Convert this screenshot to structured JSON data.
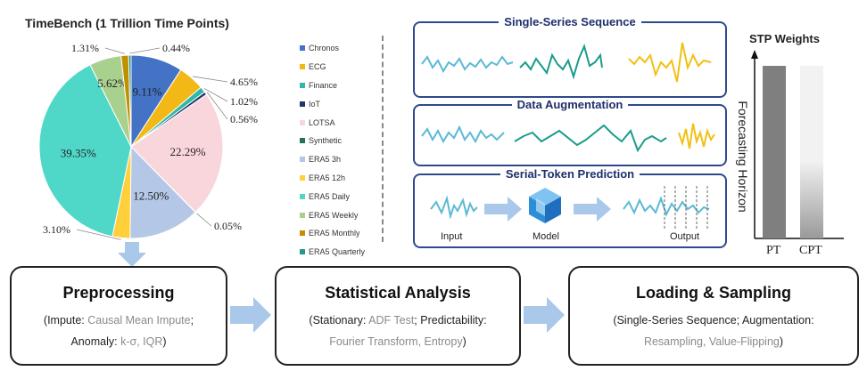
{
  "pie": {
    "title": "TimeBench (1 Trillion Time Points)",
    "slices": [
      {
        "label": "Chronos",
        "value": 9.11,
        "pct_label": "9.11%",
        "color": "#4472c4"
      },
      {
        "label": "ECG",
        "value": 4.65,
        "pct_label": "4.65%",
        "color": "#f1b816"
      },
      {
        "label": "Finance",
        "value": 1.02,
        "pct_label": "1.02%",
        "color": "#31b7a9"
      },
      {
        "label": "IoT",
        "value": 0.56,
        "pct_label": "0.56%",
        "color": "#1f3864"
      },
      {
        "label": "LOTSA",
        "value": 22.29,
        "pct_label": "22.29%",
        "color": "#f9d6dc"
      },
      {
        "label": "Synthetic",
        "value": 0.05,
        "pct_label": "0.05%",
        "color": "#2a6e62"
      },
      {
        "label": "ERA5 3h",
        "value": 12.5,
        "pct_label": "12.50%",
        "color": "#b4c7e7"
      },
      {
        "label": "ERA5 12h",
        "value": 3.1,
        "pct_label": "3.10%",
        "color": "#ffd03a"
      },
      {
        "label": "ERA5 Daily",
        "value": 39.35,
        "pct_label": "39.35%",
        "color": "#4fd8c8"
      },
      {
        "label": "ERA5 Weekly",
        "value": 5.62,
        "pct_label": "5.62%",
        "color": "#a9d18e"
      },
      {
        "label": "ERA5 Monthly",
        "value": 1.31,
        "pct_label": "1.31%",
        "color": "#bf9000"
      },
      {
        "label": "ERA5 Quarterly",
        "value": 0.44,
        "pct_label": "0.44%",
        "color": "#22998c"
      }
    ]
  },
  "panels": {
    "single_series": {
      "title": "Single-Series Sequence"
    },
    "augmentation": {
      "title": "Data Augmentation"
    },
    "stp": {
      "title": "Serial-Token Prediction",
      "input": "Input",
      "model": "Model",
      "output": "Output"
    }
  },
  "stp_weights": {
    "title": "STP Weights",
    "ylabel": "Forecasting Horizon",
    "bars": [
      {
        "label": "PT"
      },
      {
        "label": "CPT"
      }
    ]
  },
  "pipeline": {
    "preprocessing": {
      "title": "Preprocessing",
      "line1_a": "(Impute: ",
      "line1_b": "Causal Mean Impute",
      "line1_c": ";",
      "line2_a": "Anomaly: ",
      "line2_b": "k-σ, IQR",
      "line2_c": ")"
    },
    "statistical": {
      "title": "Statistical Analysis",
      "line1_a": "(Stationary: ",
      "line1_b": "ADF Test",
      "line1_c": "; Predictability:",
      "line2_b": "Fourier Transform, Entropy",
      "line2_c": ")"
    },
    "loading": {
      "title": "Loading & Sampling",
      "line1_a": "(Single-Series Sequence; Augmentation:",
      "line2_b": "Resampling, Value-Flipping",
      "line2_c": ")"
    }
  },
  "colors": {
    "teal": "#1a9c8a",
    "light_blue": "#5bbad5",
    "yellow": "#f2c014",
    "panel_border": "#2f4a8a",
    "arrow": "#a9c8ea"
  }
}
